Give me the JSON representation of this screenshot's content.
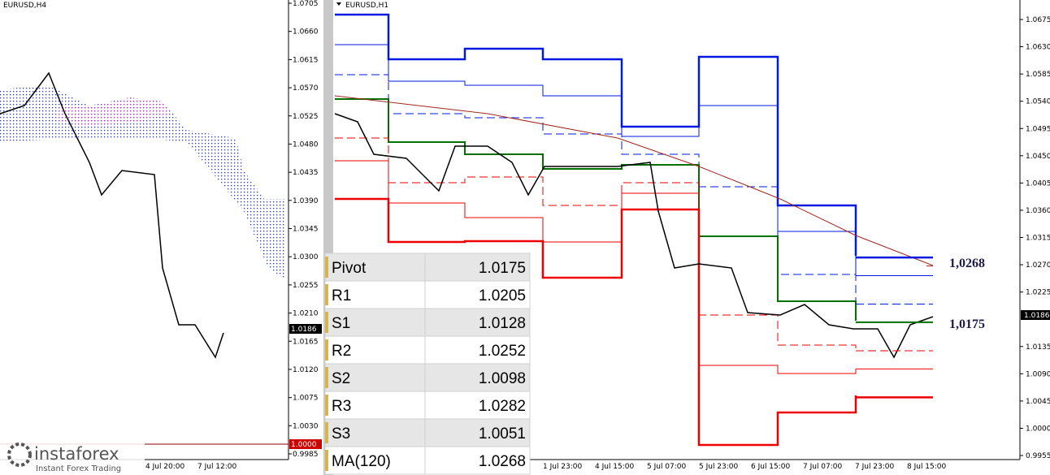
{
  "left": {
    "symbol": "EURUSD,H4",
    "yticks": [
      "1.0705",
      "1.0660",
      "1.0615",
      "1.0570",
      "1.0525",
      "1.0480",
      "1.0435",
      "1.0390",
      "1.0345",
      "1.0300",
      "1.0255",
      "1.0210",
      "1.0165",
      "1.0120",
      "1.0075",
      "1.0030",
      "0.9985"
    ],
    "price_label": "1.0186",
    "level_label": "1.0000",
    "xticks": [
      "4 Jul 20:00",
      "7 Jul 12:00"
    ]
  },
  "right": {
    "symbol": "EURUSD,H1",
    "yticks": [
      "1.0675",
      "1.0630",
      "1.0585",
      "1.0540",
      "1.0495",
      "1.0450",
      "1.0405",
      "1.0360",
      "1.0315",
      "1.0270",
      "1.0225",
      "1.0135",
      "1.0090",
      "1.0045",
      "1.0000",
      "0.9955"
    ],
    "price_label": "1.0186",
    "xticks": [
      "1 Jul 23:00",
      "4 Jul 15:00",
      "5 Jul 07:00",
      "5 Jul 23:00",
      "6 Jul 15:00",
      "7 Jul 07:00",
      "7 Jul 23:00",
      "8 Jul 15:00"
    ]
  },
  "table": {
    "rows": [
      [
        "Pivot",
        "1.0175"
      ],
      [
        "R1",
        "1.0205"
      ],
      [
        "S1",
        "1.0128"
      ],
      [
        "R2",
        "1.0252"
      ],
      [
        "S2",
        "1.0098"
      ],
      [
        "R3",
        "1.0282"
      ],
      [
        "S3",
        "1.0051"
      ],
      [
        "MA(120)",
        "1.0268"
      ]
    ]
  },
  "annotations": [
    "1,0268",
    "1,0175"
  ],
  "watermark": {
    "brand": "instaforex",
    "tagline": "Instant Forex Trading"
  }
}
